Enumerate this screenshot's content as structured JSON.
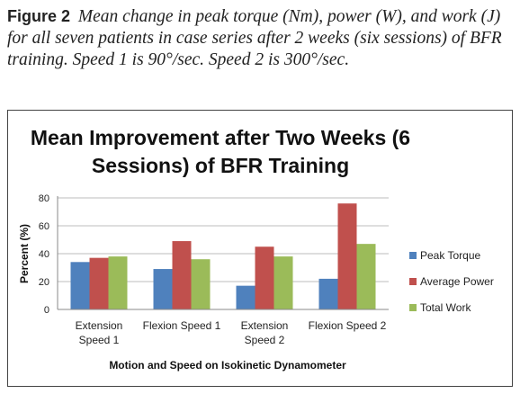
{
  "caption": {
    "label": "Figure 2",
    "text": "Mean change in peak torque (Nm), power (W), and work (J) for all seven patients in case series after 2 weeks (six sessions) of BFR training. Speed 1 is 90°/sec. Speed 2 is 300°/sec."
  },
  "chart_data": {
    "type": "bar",
    "title": "Mean Improvement after Two Weeks (6 Sessions) of BFR Training",
    "title_lines": [
      "Mean Improvement after Two Weeks (6",
      "Sessions) of BFR Training"
    ],
    "xlabel": "Motion and Speed on Isokinetic Dynamometer",
    "ylabel": "Percent (%)",
    "ylim": [
      0,
      80
    ],
    "yticks": [
      0,
      20,
      40,
      60,
      80
    ],
    "grid": true,
    "legend_position": "right",
    "categories": [
      [
        "Extension",
        "Speed 1"
      ],
      [
        "Flexion Speed 1"
      ],
      [
        "Extension",
        "Speed 2"
      ],
      [
        "Flexion Speed 2"
      ]
    ],
    "series": [
      {
        "name": "Peak Torque",
        "color": "#4F81BD",
        "values": [
          34,
          29,
          17,
          22
        ]
      },
      {
        "name": "Average Power",
        "color": "#C0504D",
        "values": [
          37,
          49,
          45,
          76
        ]
      },
      {
        "name": "Total Work",
        "color": "#9BBB59",
        "values": [
          38,
          36,
          38,
          47
        ]
      }
    ]
  }
}
